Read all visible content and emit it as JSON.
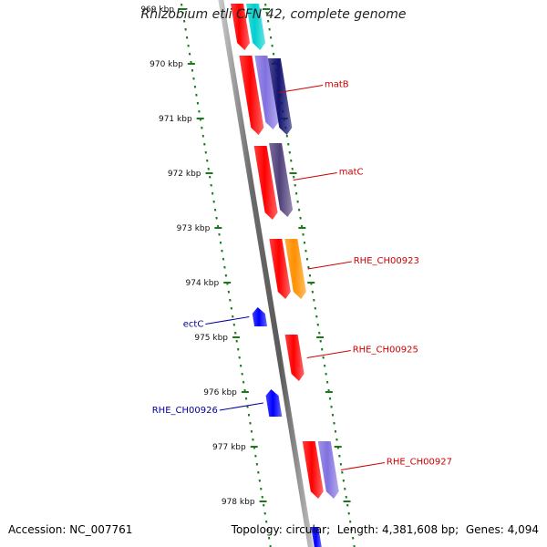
{
  "title": "Rhizobium etli CFN 42, complete genome",
  "footer": {
    "accession_label": "Accession:",
    "accession": "NC_007761",
    "topology_label": "Topology:",
    "topology": "circular",
    "length_label": "Length:",
    "length": "4,381,608 bp",
    "genes_label": "Genes:",
    "genes": "4,094"
  },
  "colors": {
    "backbone": "#8a8a8a",
    "ticks": "#1a7a1a",
    "reverse_strand": "#0000ff",
    "feature_red": "#ff0000",
    "feature_cyan": "#00d0d0",
    "feature_lavender": "#8070e0",
    "feature_navy": "#141470",
    "feature_slate": "#50407a",
    "feature_orange": "#ff9000",
    "forward_label": "#cc0000",
    "reverse_label": "#000099"
  },
  "axis": {
    "start_kbp": 969,
    "end_kbp": 978,
    "ticks": [
      "969 kbp",
      "970 kbp",
      "971 kbp",
      "972 kbp",
      "973 kbp",
      "974 kbp",
      "975 kbp",
      "976 kbp",
      "977 kbp",
      "978 kbp"
    ]
  },
  "features": [
    {
      "name": "",
      "strand": "forward",
      "track": 0,
      "color": "feature_red",
      "start_kbp": 968.9,
      "end_kbp": 969.75
    },
    {
      "name": "",
      "strand": "forward",
      "track": 1,
      "color": "feature_cyan",
      "start_kbp": 968.9,
      "end_kbp": 969.75
    },
    {
      "name": "",
      "strand": "forward",
      "track": 0,
      "color": "feature_red",
      "start_kbp": 969.85,
      "end_kbp": 971.3
    },
    {
      "name": "matB",
      "strand": "forward",
      "track": 1,
      "color": "feature_lavender",
      "start_kbp": 969.85,
      "end_kbp": 971.2
    },
    {
      "name": "",
      "strand": "forward",
      "track": 2,
      "color": "feature_navy",
      "start_kbp": 969.9,
      "end_kbp": 971.3
    },
    {
      "name": "",
      "strand": "forward",
      "track": 0,
      "color": "feature_red",
      "start_kbp": 971.5,
      "end_kbp": 972.85
    },
    {
      "name": "matC",
      "strand": "forward",
      "track": 1,
      "color": "feature_slate",
      "start_kbp": 971.45,
      "end_kbp": 972.8
    },
    {
      "name": "",
      "strand": "forward",
      "track": 0,
      "color": "feature_red",
      "start_kbp": 973.2,
      "end_kbp": 974.3
    },
    {
      "name": "RHE_CH00923",
      "strand": "forward",
      "track": 1,
      "color": "feature_orange",
      "start_kbp": 973.2,
      "end_kbp": 974.3
    },
    {
      "name": "RHE_CH00925",
      "strand": "forward",
      "track": 0,
      "color": "feature_red",
      "start_kbp": 974.95,
      "end_kbp": 975.8
    },
    {
      "name": "ectC",
      "strand": "reverse",
      "track": 0,
      "color": "reverse_strand",
      "start_kbp": 974.45,
      "end_kbp": 974.8
    },
    {
      "name": "RHE_CH00926",
      "strand": "reverse",
      "track": 0,
      "color": "reverse_strand",
      "start_kbp": 975.95,
      "end_kbp": 976.45
    },
    {
      "name": "",
      "strand": "forward",
      "track": 0,
      "color": "feature_red",
      "start_kbp": 976.9,
      "end_kbp": 977.95
    },
    {
      "name": "RHE_CH00927",
      "strand": "forward",
      "track": 1,
      "color": "feature_lavender",
      "start_kbp": 976.9,
      "end_kbp": 977.95
    }
  ]
}
